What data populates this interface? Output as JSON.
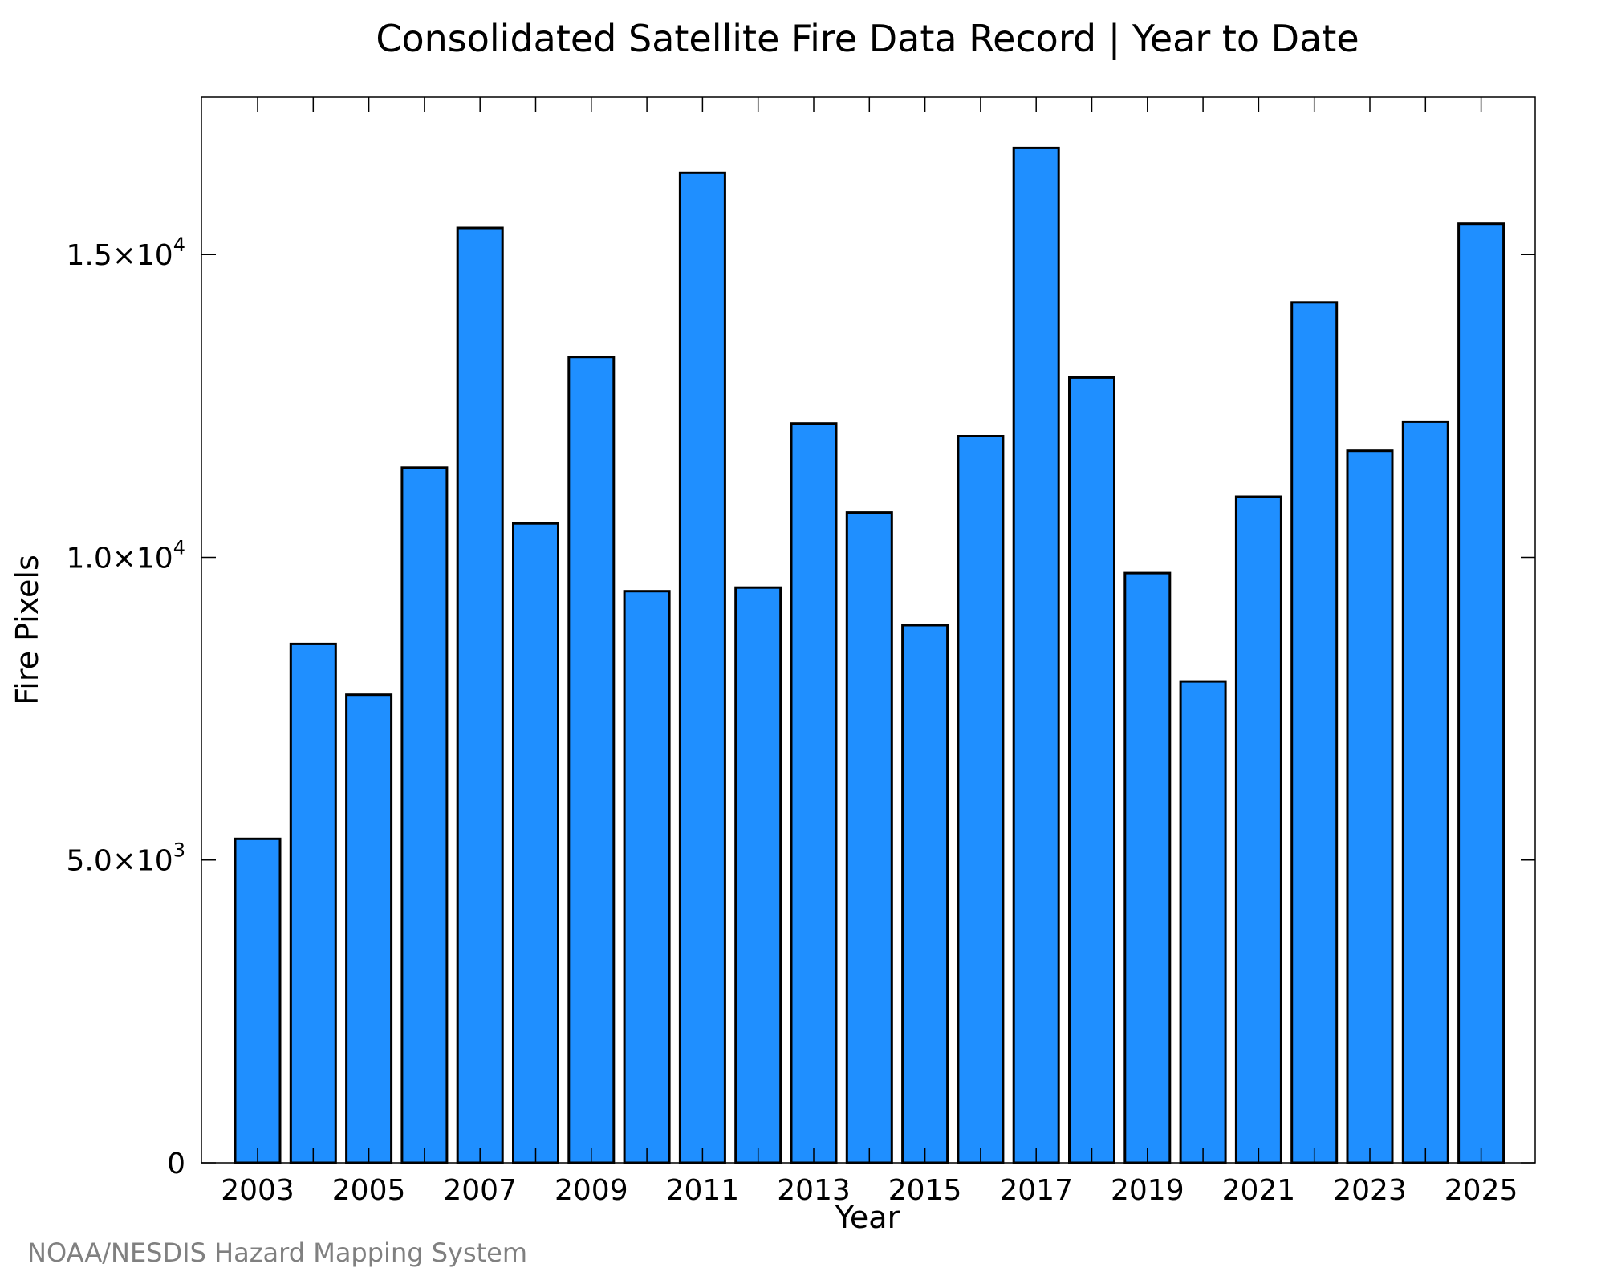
{
  "chart_data": {
    "type": "bar",
    "title": "Consolidated Satellite Fire Data Record | Year to Date",
    "xlabel": "Year",
    "ylabel": "Fire Pixels",
    "categories": [
      "2003",
      "2004",
      "2005",
      "2006",
      "2007",
      "2008",
      "2009",
      "2010",
      "2011",
      "2012",
      "2013",
      "2014",
      "2015",
      "2016",
      "2017",
      "2018",
      "2019",
      "2020",
      "2021",
      "2022",
      "2023",
      "2024",
      "2025"
    ],
    "values": [
      5350,
      8570,
      7730,
      11480,
      15440,
      10560,
      13310,
      9440,
      16350,
      9500,
      12210,
      10740,
      8880,
      12000,
      16760,
      12970,
      9740,
      7950,
      11000,
      14210,
      11760,
      12240,
      15510
    ],
    "x_tick_labels": [
      "2003",
      "2005",
      "2007",
      "2009",
      "2011",
      "2013",
      "2015",
      "2017",
      "2019",
      "2021",
      "2023",
      "2025"
    ],
    "y_ticks": [
      {
        "value": 0,
        "label": "0"
      },
      {
        "value": 5000,
        "label": "5.0×10",
        "exp": "3"
      },
      {
        "value": 10000,
        "label": "1.0×10",
        "exp": "4"
      },
      {
        "value": 15000,
        "label": "1.5×10",
        "exp": "4"
      }
    ],
    "ylim": [
      0,
      17600
    ],
    "grid": false,
    "bar_color": "#1f8fff",
    "edge_color": "#000000"
  },
  "credit": "NOAA/NESDIS Hazard Mapping System"
}
